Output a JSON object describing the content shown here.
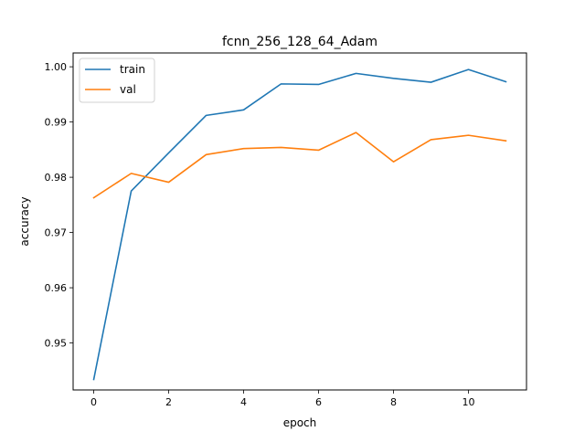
{
  "chart_data": {
    "type": "line",
    "title": "fcnn_256_128_64_Adam",
    "xlabel": "epoch",
    "ylabel": "accuracy",
    "xlim": [
      -0.55,
      11.55
    ],
    "ylim": [
      0.9415,
      1.0025
    ],
    "xticks": [
      0,
      2,
      4,
      6,
      8,
      10
    ],
    "xtick_labels": [
      "0",
      "2",
      "4",
      "6",
      "8",
      "10"
    ],
    "yticks": [
      0.95,
      0.96,
      0.97,
      0.98,
      0.99,
      1.0
    ],
    "ytick_labels": [
      "0.95",
      "0.96",
      "0.97",
      "0.98",
      "0.99",
      "1.00"
    ],
    "grid": false,
    "legend_position": "top-left",
    "x": [
      0,
      1,
      2,
      3,
      4,
      5,
      6,
      7,
      8,
      9,
      10,
      11
    ],
    "series": [
      {
        "name": "train",
        "color": "#1f77b4",
        "values": [
          0.9434,
          0.9775,
          0.9844,
          0.9912,
          0.9922,
          0.9969,
          0.9968,
          0.9988,
          0.9979,
          0.9972,
          0.9995,
          0.9973
        ]
      },
      {
        "name": "val",
        "color": "#ff7f0e",
        "values": [
          0.9763,
          0.9807,
          0.9791,
          0.9841,
          0.9852,
          0.9854,
          0.9849,
          0.9881,
          0.9828,
          0.9868,
          0.9876,
          0.9866
        ]
      }
    ]
  }
}
